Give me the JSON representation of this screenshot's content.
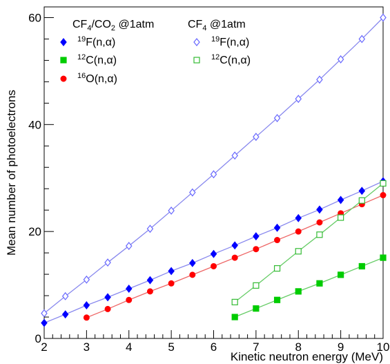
{
  "chart_data": {
    "type": "line",
    "xlabel": "Kinetic neutron energy (MeV)",
    "ylabel": "Mean number of photoelectrons",
    "xlim": [
      2,
      10
    ],
    "ylim": [
      0,
      62
    ],
    "xticks": [
      2,
      3,
      4,
      5,
      6,
      7,
      8,
      9,
      10
    ],
    "yticks": [
      0,
      20,
      40,
      60
    ],
    "grid": false,
    "legend": {
      "placement": "top-left",
      "groups": [
        {
          "header_main": "CF",
          "header_sub1": "4",
          "header_mid": "/CO",
          "header_sub2": "2",
          "header_tail": " @1atm"
        },
        {
          "header_main": "CF",
          "header_sub1": "4",
          "header_mid": "",
          "header_sub2": "",
          "header_tail": " @1atm"
        }
      ]
    },
    "series": [
      {
        "id": "s1",
        "group": "CF4/CO2 @1atm",
        "label_sup": "19",
        "label_main": "F(n,α)",
        "color": "#0000ff",
        "line_color": "#8888ee",
        "marker": "filled-diamond",
        "x": [
          2,
          2.5,
          3,
          3.5,
          4,
          4.5,
          5,
          5.5,
          6,
          6.5,
          7,
          7.5,
          8,
          8.5,
          9,
          9.5,
          10
        ],
        "y": [
          2.9,
          4.5,
          6.2,
          7.7,
          9.3,
          10.9,
          12.6,
          14.1,
          15.8,
          17.4,
          19.1,
          20.7,
          22.5,
          24.1,
          25.9,
          27.6,
          29.4
        ]
      },
      {
        "id": "s2",
        "group": "CF4/CO2 @1atm",
        "label_sup": "12",
        "label_main": "C(n,α)",
        "color": "#00cc00",
        "line_color": "#66cc66",
        "marker": "filled-square",
        "x": [
          6.5,
          7,
          7.5,
          8,
          8.5,
          9,
          9.5,
          10
        ],
        "y": [
          4.0,
          5.6,
          7.2,
          8.8,
          10.3,
          11.9,
          13.5,
          15.1
        ]
      },
      {
        "id": "s3",
        "group": "CF4/CO2 @1atm",
        "label_sup": "16",
        "label_main": "O(n,α)",
        "color": "#ff0000",
        "line_color": "#ee6666",
        "marker": "filled-circle",
        "x": [
          3,
          3.5,
          4,
          4.5,
          5,
          5.5,
          6,
          6.5,
          7,
          7.5,
          8,
          8.5,
          9,
          9.5,
          10
        ],
        "y": [
          3.9,
          5.5,
          7.2,
          8.8,
          10.3,
          11.9,
          13.5,
          15.1,
          16.7,
          18.4,
          20.0,
          21.7,
          23.4,
          25.1,
          26.8
        ]
      },
      {
        "id": "s4",
        "group": "CF4 @1atm",
        "label_sup": "19",
        "label_main": "F(n,α)",
        "color": "#6666ff",
        "line_color": "#8888ee",
        "marker": "open-diamond",
        "x": [
          2,
          2.5,
          3,
          3.5,
          4,
          4.5,
          5,
          5.5,
          6,
          6.5,
          7,
          7.5,
          8,
          8.5,
          9,
          9.5,
          10
        ],
        "y": [
          4.7,
          7.9,
          11.0,
          14.2,
          17.3,
          20.5,
          23.9,
          27.3,
          30.7,
          34.2,
          37.7,
          41.2,
          44.8,
          48.4,
          52.2,
          56.0,
          60.0
        ]
      },
      {
        "id": "s5",
        "group": "CF4 @1atm",
        "label_sup": "12",
        "label_main": "C(n,α)",
        "color": "#33bb33",
        "line_color": "#66cc66",
        "marker": "open-square",
        "x": [
          6.5,
          7,
          7.5,
          8,
          8.5,
          9,
          9.5,
          10
        ],
        "y": [
          6.8,
          9.9,
          13.1,
          16.3,
          19.4,
          22.6,
          25.8,
          29.0
        ]
      }
    ]
  }
}
